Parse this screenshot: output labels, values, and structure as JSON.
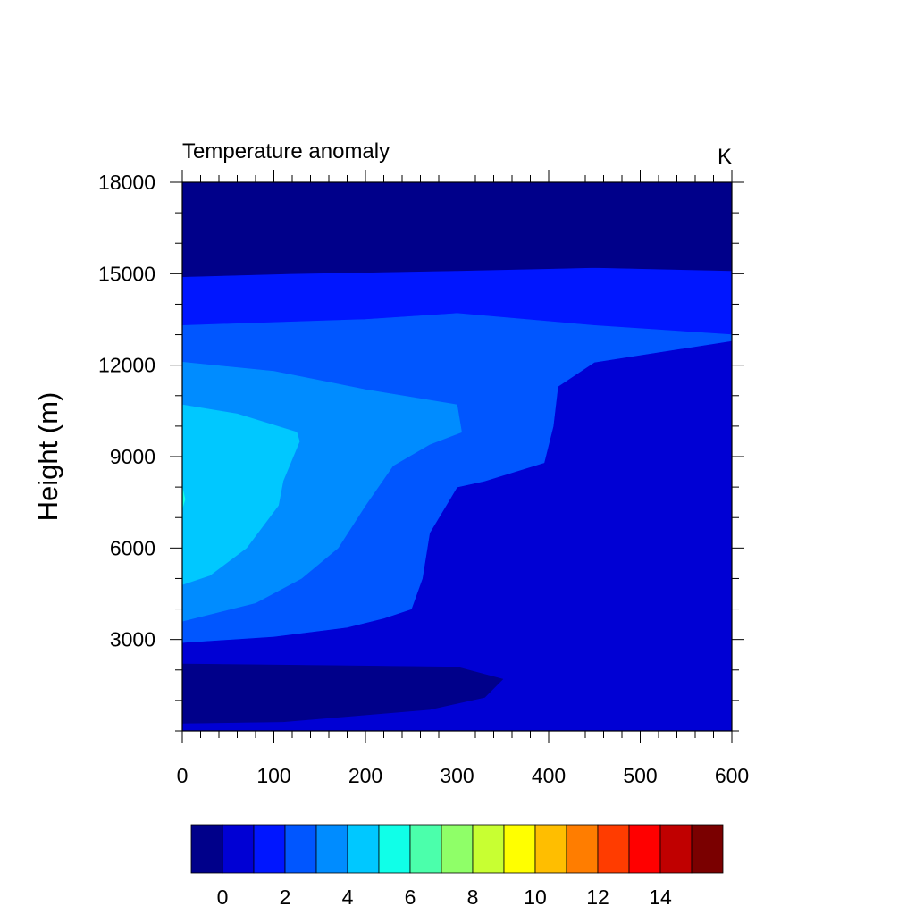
{
  "chart_data": {
    "type": "heatmap",
    "title": "Temperature anomaly",
    "units": "K",
    "ylabel": "Height (m)",
    "xlabel": "",
    "xlim": [
      0,
      600
    ],
    "ylim": [
      0,
      18000
    ],
    "xticks": [
      0,
      100,
      200,
      300,
      400,
      500,
      600
    ],
    "yticks": [
      3000,
      6000,
      9000,
      12000,
      15000,
      18000
    ],
    "colorbar": {
      "levels": [
        -1,
        0,
        1,
        2,
        3,
        4,
        5,
        6,
        7,
        8,
        9,
        10,
        11,
        12,
        13,
        14,
        15,
        16
      ],
      "tick_labels": [
        0,
        2,
        4,
        6,
        8,
        10,
        12,
        14
      ],
      "colors": [
        "#00008a",
        "#0000d4",
        "#0016ff",
        "#0056ff",
        "#008cff",
        "#00c8ff",
        "#10ffe8",
        "#4bffab",
        "#8fff68",
        "#c8ff32",
        "#ffff00",
        "#ffbe00",
        "#ff7d00",
        "#ff3c00",
        "#ff0000",
        "#c00000",
        "#7a0000"
      ]
    },
    "contours": [
      {
        "name": "level-1",
        "color_index": 1,
        "points": [
          [
            0,
            18000
          ],
          [
            600,
            18000
          ],
          [
            600,
            0
          ],
          [
            0,
            0
          ]
        ]
      },
      {
        "name": "level-2",
        "color_index": 2,
        "points": [
          [
            0,
            14900
          ],
          [
            120,
            15000
          ],
          [
            300,
            15100
          ],
          [
            450,
            15200
          ],
          [
            600,
            15100
          ],
          [
            600,
            12800
          ],
          [
            450,
            12100
          ],
          [
            410,
            11300
          ],
          [
            405,
            10000
          ],
          [
            395,
            8800
          ],
          [
            330,
            8200
          ],
          [
            300,
            8000
          ],
          [
            290,
            7500
          ],
          [
            270,
            6500
          ],
          [
            262,
            5000
          ],
          [
            250,
            4000
          ],
          [
            220,
            3700
          ],
          [
            180,
            3400
          ],
          [
            100,
            3100
          ],
          [
            0,
            2900
          ]
        ]
      },
      {
        "name": "level-3",
        "color_index": 3,
        "points": [
          [
            0,
            13300
          ],
          [
            200,
            13500
          ],
          [
            300,
            13700
          ],
          [
            450,
            13300
          ],
          [
            600,
            13000
          ],
          [
            600,
            12800
          ],
          [
            450,
            12100
          ],
          [
            410,
            11300
          ],
          [
            405,
            10000
          ],
          [
            395,
            8800
          ],
          [
            330,
            8200
          ],
          [
            300,
            8000
          ],
          [
            290,
            7500
          ],
          [
            270,
            6500
          ],
          [
            262,
            5000
          ],
          [
            250,
            4000
          ],
          [
            220,
            3700
          ],
          [
            180,
            3400
          ],
          [
            100,
            3100
          ],
          [
            0,
            2900
          ]
        ]
      },
      {
        "name": "level-4",
        "color_index": 4,
        "points": [
          [
            0,
            12100
          ],
          [
            100,
            11800
          ],
          [
            200,
            11200
          ],
          [
            300,
            10700
          ],
          [
            305,
            9800
          ],
          [
            270,
            9400
          ],
          [
            230,
            8700
          ],
          [
            200,
            7400
          ],
          [
            170,
            6000
          ],
          [
            130,
            5000
          ],
          [
            80,
            4200
          ],
          [
            0,
            3600
          ]
        ]
      },
      {
        "name": "level-5",
        "color_index": 5,
        "points": [
          [
            0,
            10700
          ],
          [
            60,
            10400
          ],
          [
            125,
            9800
          ],
          [
            128,
            9500
          ],
          [
            110,
            8200
          ],
          [
            105,
            7400
          ],
          [
            70,
            6000
          ],
          [
            30,
            5100
          ],
          [
            0,
            4800
          ]
        ]
      },
      {
        "name": "level-6",
        "color_index": 6,
        "points": [
          [
            0,
            8000
          ],
          [
            3,
            7600
          ],
          [
            0,
            7300
          ]
        ]
      },
      {
        "name": "level-0-upper",
        "color_index": 0,
        "points": [
          [
            0,
            18000
          ],
          [
            600,
            18000
          ],
          [
            600,
            15100
          ],
          [
            450,
            15200
          ],
          [
            300,
            15100
          ],
          [
            120,
            15000
          ],
          [
            0,
            14900
          ]
        ]
      },
      {
        "name": "level-0-lower",
        "color_index": 0,
        "points": [
          [
            0,
            2200
          ],
          [
            150,
            2150
          ],
          [
            300,
            2100
          ],
          [
            350,
            1700
          ],
          [
            330,
            1100
          ],
          [
            270,
            700
          ],
          [
            110,
            300
          ],
          [
            0,
            250
          ]
        ]
      }
    ]
  }
}
